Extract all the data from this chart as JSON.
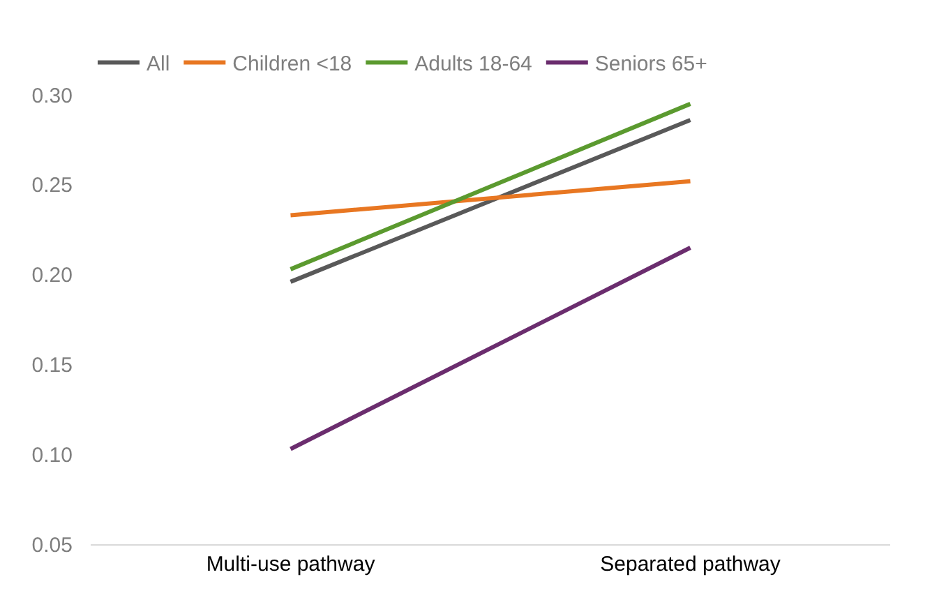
{
  "chart_data": {
    "type": "line",
    "categories": [
      "Multi-use pathway",
      "Separated pathway"
    ],
    "series": [
      {
        "name": "All",
        "color": "#595959",
        "values": [
          0.196,
          0.286
        ]
      },
      {
        "name": "Children <18",
        "color": "#e87722",
        "values": [
          0.233,
          0.252
        ]
      },
      {
        "name": "Adults 18-64",
        "color": "#5b9a2f",
        "values": [
          0.203,
          0.295
        ]
      },
      {
        "name": "Seniors 65+",
        "color": "#6b2d6e",
        "values": [
          0.103,
          0.215
        ]
      }
    ],
    "ylim": [
      0.05,
      0.3
    ],
    "yticks": [
      {
        "value": 0.05,
        "label": "0.05"
      },
      {
        "value": 0.1,
        "label": "0.10"
      },
      {
        "value": 0.15,
        "label": "0.15"
      },
      {
        "value": 0.2,
        "label": "0.20"
      },
      {
        "value": 0.25,
        "label": "0.25"
      },
      {
        "value": 0.3,
        "label": "0.30"
      }
    ],
    "grid": false,
    "legend": "top left",
    "marker": "none",
    "line_style": "solid"
  }
}
